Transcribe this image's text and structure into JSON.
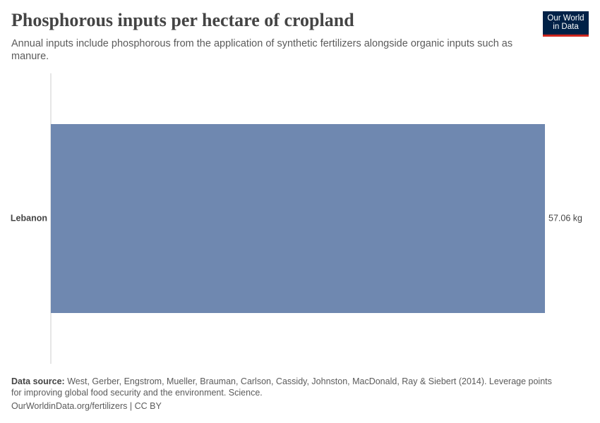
{
  "chart_data": {
    "type": "bar",
    "orientation": "horizontal",
    "title": "Phosphorous inputs per hectare of cropland",
    "subtitle": "Annual inputs include phosphorous from the application of synthetic fertilizers alongside organic inputs such as manure.",
    "categories": [
      "Lebanon"
    ],
    "values": [
      57.06
    ],
    "value_labels": [
      "57.06 kg"
    ],
    "color": "#6f88b0"
  },
  "source_label": "Data source:",
  "source": "West, Gerber, Engstrom, Mueller, Brauman, Carlson, Cassidy, Johnston, MacDonald, Ray & Siebert (2014). Leverage points for improving global food security and the environment. Science.",
  "footer": "OurWorldinData.org/fertilizers | CC BY",
  "logo": {
    "line1": "Our World",
    "line2": "in Data"
  }
}
